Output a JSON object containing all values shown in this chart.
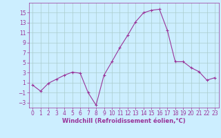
{
  "x": [
    0,
    1,
    2,
    3,
    4,
    5,
    6,
    7,
    8,
    9,
    10,
    11,
    12,
    13,
    14,
    15,
    16,
    17,
    18,
    19,
    20,
    21,
    22,
    23
  ],
  "y": [
    0.5,
    -0.7,
    0.9,
    1.7,
    2.5,
    3.1,
    2.9,
    -1.0,
    -3.5,
    2.5,
    5.2,
    8.0,
    10.5,
    13.2,
    15.0,
    15.5,
    15.7,
    11.5,
    5.2,
    5.2,
    4.0,
    3.2,
    1.5,
    2.0
  ],
  "line_color": "#993399",
  "marker": "+",
  "bg_color": "#cceeff",
  "grid_color": "#aacccc",
  "xlabel": "Windchill (Refroidissement éolien,°C)",
  "xlabel_color": "#993399",
  "tick_color": "#993399",
  "ylim": [
    -4,
    17
  ],
  "xlim": [
    -0.5,
    23.5
  ],
  "yticks": [
    -3,
    -1,
    1,
    3,
    5,
    7,
    9,
    11,
    13,
    15
  ],
  "xticks": [
    0,
    1,
    2,
    3,
    4,
    5,
    6,
    7,
    8,
    9,
    10,
    11,
    12,
    13,
    14,
    15,
    16,
    17,
    18,
    19,
    20,
    21,
    22,
    23
  ],
  "tick_fontsize": 5.5,
  "xlabel_fontsize": 6.0
}
